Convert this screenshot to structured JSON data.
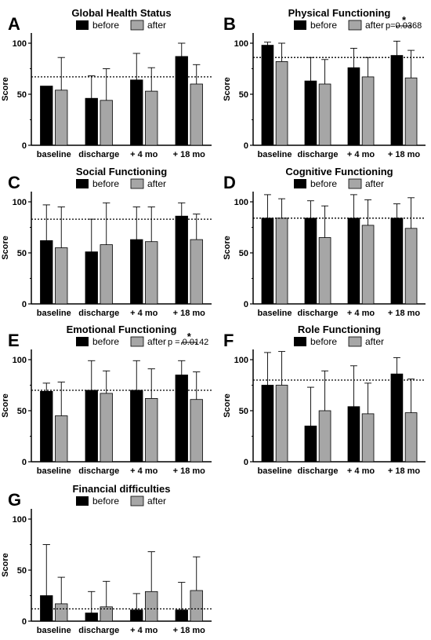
{
  "legend": {
    "before_label": "before",
    "after_label": "after",
    "before_color": "#000000",
    "after_color": "#a6a6a6"
  },
  "chart_data": [
    {
      "letter": "A",
      "title": "Global Health Status",
      "type": "bar",
      "ylabel": "Score",
      "ylim": [
        0,
        110
      ],
      "yticks": [
        "0",
        "50",
        "100"
      ],
      "categories": [
        "baseline",
        "discharge",
        "+ 4 mo",
        "+ 18 mo"
      ],
      "series": [
        {
          "name": "before",
          "values": [
            58,
            46,
            64,
            87
          ],
          "err": [
            0,
            22,
            26,
            13
          ]
        },
        {
          "name": "after",
          "values": [
            54,
            44,
            53,
            60
          ],
          "err": [
            32,
            31,
            23,
            19
          ]
        }
      ],
      "reference_line": 67
    },
    {
      "letter": "B",
      "title": "Physical Functioning",
      "type": "bar",
      "ylabel": "Score",
      "ylim": [
        0,
        110
      ],
      "yticks": [
        "0",
        "50",
        "100"
      ],
      "categories": [
        "baseline",
        "discharge",
        "+ 4 mo",
        "+ 18 mo"
      ],
      "series": [
        {
          "name": "before",
          "values": [
            98,
            63,
            76,
            88
          ],
          "err": [
            3,
            23,
            19,
            14
          ]
        },
        {
          "name": "after",
          "values": [
            82,
            60,
            67,
            66
          ],
          "err": [
            18,
            24,
            19,
            27
          ]
        }
      ],
      "reference_line": 86,
      "p_value": "p=0.0368",
      "star": "*",
      "sig_category": "+ 18 mo"
    },
    {
      "letter": "C",
      "title": "Social Functioning",
      "type": "bar",
      "ylabel": "Score",
      "ylim": [
        0,
        110
      ],
      "yticks": [
        "0",
        "50",
        "100"
      ],
      "categories": [
        "baseline",
        "discharge",
        "+ 4 mo",
        "+ 18 mo"
      ],
      "series": [
        {
          "name": "before",
          "values": [
            62,
            51,
            63,
            86
          ],
          "err": [
            35,
            32,
            32,
            13
          ]
        },
        {
          "name": "after",
          "values": [
            55,
            58,
            61,
            63
          ],
          "err": [
            40,
            41,
            34,
            25
          ]
        }
      ],
      "reference_line": 83
    },
    {
      "letter": "D",
      "title": "Cognitive Functioning",
      "type": "bar",
      "ylabel": "Score",
      "ylim": [
        0,
        110
      ],
      "yticks": [
        "0",
        "50",
        "100"
      ],
      "categories": [
        "baseline",
        "discharge",
        "+ 4 mo",
        "+ 18 mo"
      ],
      "series": [
        {
          "name": "before",
          "values": [
            84,
            84,
            84,
            84
          ],
          "err": [
            23,
            17,
            23,
            14
          ]
        },
        {
          "name": "after",
          "values": [
            84,
            65,
            77,
            74
          ],
          "err": [
            19,
            31,
            25,
            30
          ]
        }
      ],
      "reference_line": 84
    },
    {
      "letter": "E",
      "title": "Emotional Functioning",
      "type": "bar",
      "ylabel": "Score",
      "ylim": [
        0,
        110
      ],
      "yticks": [
        "0",
        "50",
        "100"
      ],
      "categories": [
        "baseline",
        "discharge",
        "+ 4 mo",
        "+ 18 mo"
      ],
      "series": [
        {
          "name": "before",
          "values": [
            69,
            70,
            70,
            85
          ],
          "err": [
            8,
            29,
            29,
            14
          ]
        },
        {
          "name": "after",
          "values": [
            45,
            67,
            62,
            61
          ],
          "err": [
            33,
            22,
            29,
            27
          ]
        }
      ],
      "reference_line": 70,
      "p_value": "p = 0.0142",
      "star": "*",
      "sig_category": "+ 18 mo"
    },
    {
      "letter": "F",
      "title": "Role Functioning",
      "type": "bar",
      "ylabel": "Score",
      "ylim": [
        0,
        110
      ],
      "yticks": [
        "0",
        "50",
        "100"
      ],
      "categories": [
        "baseline",
        "discharge",
        "+ 4 mo",
        "+ 18 mo"
      ],
      "series": [
        {
          "name": "before",
          "values": [
            75,
            35,
            54,
            86
          ],
          "err": [
            32,
            38,
            40,
            16
          ]
        },
        {
          "name": "after",
          "values": [
            75,
            50,
            47,
            48
          ],
          "err": [
            33,
            39,
            30,
            33
          ]
        }
      ],
      "reference_line": 80
    },
    {
      "letter": "G",
      "title": "Financial difficulties",
      "type": "bar",
      "ylabel": "Score",
      "ylim": [
        0,
        110
      ],
      "yticks": [
        "0",
        "50",
        "100"
      ],
      "categories": [
        "baseline",
        "discharge",
        "+ 4 mo",
        "+ 18 mo"
      ],
      "series": [
        {
          "name": "before",
          "values": [
            25,
            8,
            11,
            11
          ],
          "err": [
            50,
            21,
            16,
            27
          ]
        },
        {
          "name": "after",
          "values": [
            17,
            14,
            29,
            30
          ],
          "err": [
            26,
            25,
            39,
            33
          ]
        }
      ],
      "reference_line": 12
    }
  ]
}
